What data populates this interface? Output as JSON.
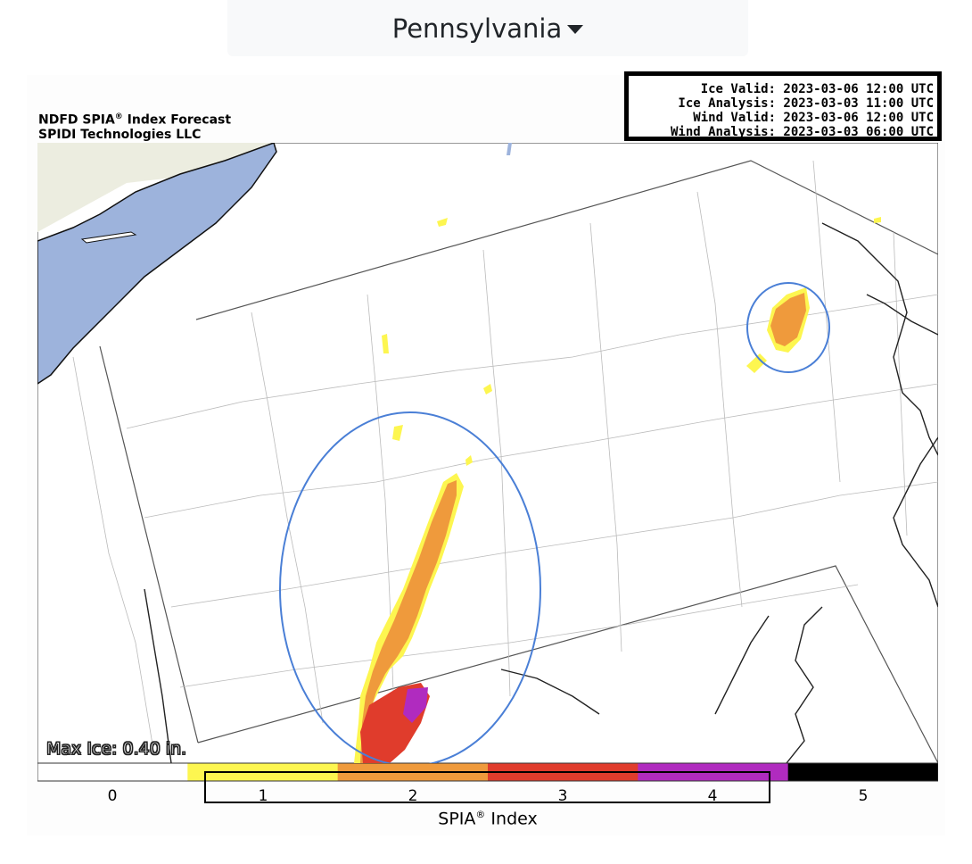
{
  "dropdown": {
    "label": "Pennsylvania",
    "icon": "caret-down-icon"
  },
  "figure": {
    "title_line1": "NDFD SPIA",
    "title_reg": "®",
    "title_line1_suffix": " Index Forecast",
    "title_line2": "SPIDI Technologies LLC"
  },
  "info": {
    "ice_valid": "Ice Valid: 2023-03-06 12:00 UTC",
    "ice_analysis": "Ice Analysis: 2023-03-03 11:00 UTC",
    "wind_valid": "Wind Valid: 2023-03-06 12:00 UTC",
    "wind_analysis": "Wind Analysis: 2023-03-03 06:00 UTC"
  },
  "map": {
    "max_ice": "Max Ice: 0.40 in.",
    "colors": {
      "water": "#9db3dc",
      "land_ne": "#ecede0",
      "circle": "#4a7fd6"
    }
  },
  "colorbar": {
    "label": "SPIA",
    "label_reg": "®",
    "label_suffix": " Index",
    "ticks": [
      "0",
      "1",
      "2",
      "3",
      "4",
      "5"
    ],
    "colors": [
      "#ffffff",
      "#fdf650",
      "#ef9a3c",
      "#e03c2c",
      "#b02bbf",
      "#000000"
    ]
  }
}
